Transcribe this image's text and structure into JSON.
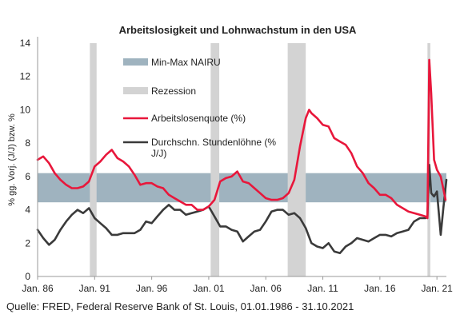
{
  "chart_data": {
    "type": "line",
    "title": "Arbeitslosigkeit  und Lohnwachstum  in den USA",
    "ylabel": "% gg. Vorj. (J/J) bzw. %",
    "xlabel": "",
    "ylim": [
      0,
      14
    ],
    "yticks": [
      0,
      2,
      4,
      6,
      8,
      10,
      12,
      14
    ],
    "xlim": [
      1986.0,
      2021.83
    ],
    "xticks": [
      {
        "x": 1986,
        "label": "Jan. 86"
      },
      {
        "x": 1991,
        "label": "Jan. 91"
      },
      {
        "x": 1996,
        "label": "Jan. 96"
      },
      {
        "x": 2001,
        "label": "Jan. 01"
      },
      {
        "x": 2006,
        "label": "Jan. 06"
      },
      {
        "x": 2011,
        "label": "Jan. 11"
      },
      {
        "x": 2016,
        "label": "Jan. 16"
      },
      {
        "x": 2021,
        "label": "Jan. 21"
      }
    ],
    "nairu_band": {
      "name": "Min-Max NAIRU",
      "min": 4.45,
      "max": 6.2,
      "color": "#9fb3bf"
    },
    "recessions": {
      "name": "Rezession",
      "color": "#d3d3d3",
      "periods": [
        [
          1990.58,
          1991.17
        ],
        [
          2001.17,
          2001.92
        ],
        [
          2007.92,
          2009.5
        ],
        [
          2020.17,
          2020.42
        ]
      ]
    },
    "series": [
      {
        "name": "Arbeitslosenquote (%)",
        "color": "#e8173b",
        "x": [
          1986.0,
          1986.5,
          1987.0,
          1987.5,
          1988.0,
          1988.5,
          1989.0,
          1989.5,
          1990.0,
          1990.5,
          1991.0,
          1991.5,
          1992.0,
          1992.5,
          1993.0,
          1993.5,
          1994.0,
          1994.5,
          1995.0,
          1995.5,
          1996.0,
          1996.5,
          1997.0,
          1997.5,
          1998.0,
          1998.5,
          1999.0,
          1999.5,
          2000.0,
          2000.5,
          2001.0,
          2001.5,
          2002.0,
          2002.5,
          2003.0,
          2003.5,
          2004.0,
          2004.5,
          2005.0,
          2005.5,
          2006.0,
          2006.5,
          2007.0,
          2007.5,
          2008.0,
          2008.5,
          2009.0,
          2009.5,
          2009.8,
          2010.0,
          2010.5,
          2011.0,
          2011.5,
          2012.0,
          2012.5,
          2013.0,
          2013.5,
          2014.0,
          2014.5,
          2015.0,
          2015.5,
          2016.0,
          2016.5,
          2017.0,
          2017.5,
          2018.0,
          2018.5,
          2019.0,
          2019.5,
          2020.0,
          2020.17,
          2020.33,
          2020.5,
          2020.75,
          2021.0,
          2021.33,
          2021.58,
          2021.75
        ],
        "y": [
          7.0,
          7.2,
          6.8,
          6.2,
          5.8,
          5.5,
          5.3,
          5.3,
          5.4,
          5.7,
          6.6,
          6.9,
          7.3,
          7.6,
          7.1,
          6.9,
          6.6,
          6.1,
          5.5,
          5.6,
          5.6,
          5.4,
          5.3,
          4.9,
          4.7,
          4.5,
          4.3,
          4.3,
          4.0,
          4.0,
          4.2,
          4.6,
          5.7,
          5.9,
          6.0,
          6.3,
          5.7,
          5.6,
          5.3,
          5.0,
          4.7,
          4.6,
          4.6,
          4.7,
          5.0,
          5.8,
          7.8,
          9.5,
          10.0,
          9.8,
          9.5,
          9.1,
          9.0,
          8.3,
          8.1,
          7.9,
          7.4,
          6.6,
          6.2,
          5.6,
          5.3,
          4.9,
          4.9,
          4.7,
          4.3,
          4.1,
          3.9,
          3.8,
          3.7,
          3.6,
          3.5,
          13.0,
          11.0,
          7.0,
          6.4,
          6.0,
          5.2,
          4.6
        ]
      },
      {
        "name": "Durchschn. Stundenlöhne (% J/J)",
        "color": "#3a3a3a",
        "x": [
          1986.0,
          1986.5,
          1987.0,
          1987.5,
          1988.0,
          1988.5,
          1989.0,
          1989.5,
          1990.0,
          1990.5,
          1991.0,
          1991.5,
          1992.0,
          1992.5,
          1993.0,
          1993.5,
          1994.0,
          1994.5,
          1995.0,
          1995.5,
          1996.0,
          1996.5,
          1997.0,
          1997.5,
          1998.0,
          1998.5,
          1999.0,
          1999.5,
          2000.0,
          2000.5,
          2001.0,
          2001.5,
          2002.0,
          2002.5,
          2003.0,
          2003.5,
          2004.0,
          2004.5,
          2005.0,
          2005.5,
          2006.0,
          2006.5,
          2007.0,
          2007.5,
          2008.0,
          2008.5,
          2009.0,
          2009.5,
          2010.0,
          2010.5,
          2011.0,
          2011.5,
          2012.0,
          2012.5,
          2013.0,
          2013.5,
          2014.0,
          2014.5,
          2015.0,
          2015.5,
          2016.0,
          2016.5,
          2017.0,
          2017.5,
          2018.0,
          2018.5,
          2019.0,
          2019.5,
          2020.0,
          2020.17,
          2020.33,
          2020.5,
          2020.75,
          2021.0,
          2021.33,
          2021.58,
          2021.83
        ],
        "y": [
          2.8,
          2.3,
          1.9,
          2.2,
          2.8,
          3.3,
          3.7,
          4.0,
          3.8,
          4.1,
          3.5,
          3.2,
          2.9,
          2.5,
          2.5,
          2.6,
          2.6,
          2.6,
          2.8,
          3.3,
          3.2,
          3.6,
          4.0,
          4.3,
          4.0,
          4.0,
          3.7,
          3.8,
          3.9,
          4.0,
          4.2,
          3.6,
          3.0,
          3.0,
          2.8,
          2.7,
          2.1,
          2.4,
          2.7,
          2.8,
          3.3,
          3.9,
          4.0,
          4.0,
          3.7,
          3.8,
          3.5,
          2.9,
          2.0,
          1.8,
          1.7,
          2.0,
          1.5,
          1.4,
          1.8,
          2.0,
          2.3,
          2.2,
          2.1,
          2.3,
          2.5,
          2.5,
          2.4,
          2.6,
          2.7,
          2.8,
          3.3,
          3.5,
          3.5,
          3.6,
          6.7,
          5.0,
          4.8,
          5.1,
          2.5,
          4.2,
          5.8
        ]
      }
    ],
    "legend_position": "inside-center",
    "grid": false
  },
  "legend_items": {
    "nairu": "Min-Max NAIRU",
    "recession": "Rezession",
    "unemployment": "Arbeitslosenquote (%)",
    "wages_line1": "Durchschn. Stundenlöhne (%",
    "wages_line2": "J/J)"
  },
  "source": "Quelle: FRED, Federal Reserve Bank of St. Louis, 01.01.1986 - 31.10.2021"
}
